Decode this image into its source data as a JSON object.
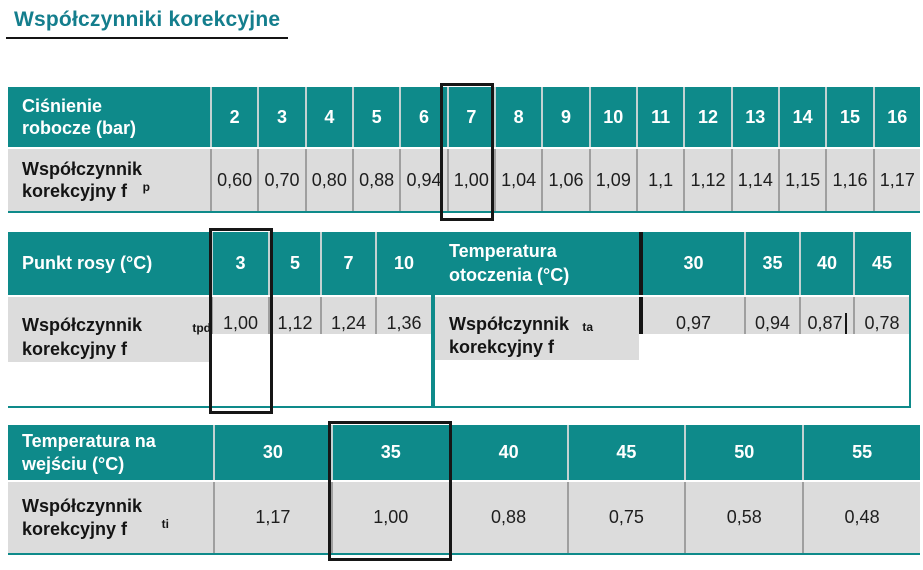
{
  "title": "Współczynniki korekcyjne",
  "colors": {
    "accent_teal": "#0e8a8a",
    "title_teal": "#147e8d",
    "body_gray": "#dcdcdc",
    "highlight_border": "#161616"
  },
  "table_pressure": {
    "header_label": "Ciśnienie robocze (bar)",
    "row_label": "Współczynnik korekcyjny f",
    "row_label_sub": "p",
    "columns": [
      "2",
      "3",
      "4",
      "5",
      "6",
      "7",
      "8",
      "9",
      "10",
      "11",
      "12",
      "13",
      "14",
      "15",
      "16"
    ],
    "values": [
      "0,60",
      "0,70",
      "0,80",
      "0,88",
      "0,94",
      "1,00",
      "1,04",
      "1,06",
      "1,09",
      "1,1",
      "1,12",
      "1,14",
      "1,15",
      "1,16",
      "1,17"
    ],
    "highlight_column": "7"
  },
  "table_dewpoint": {
    "header_label": "Punkt rosy (°C)",
    "row_label": "Współczynnik korekcyjny f",
    "row_label_sub": "tpd",
    "columns": [
      "3",
      "5",
      "7",
      "10"
    ],
    "values": [
      "1,00",
      "1,12",
      "1,24",
      "1,36"
    ],
    "highlight_column": "3"
  },
  "table_ambient": {
    "header_label": "Temperatura otoczenia (°C)",
    "row_label": "Współczynnik korekcyjny f",
    "row_label_sub": "ta",
    "columns": [
      "30",
      "35",
      "40",
      "45"
    ],
    "values": [
      "0,97",
      "0,94",
      "0,87",
      "0,78"
    ]
  },
  "table_inlet": {
    "header_label": "Temperatura na wejściu (°C)",
    "row_label": "Współczynnik korekcyjny f",
    "row_label_sub": "ti",
    "columns": [
      "30",
      "35",
      "40",
      "45",
      "50",
      "55"
    ],
    "values": [
      "1,17",
      "1,00",
      "0,88",
      "0,75",
      "0,58",
      "0,48"
    ],
    "highlight_column": "35"
  }
}
